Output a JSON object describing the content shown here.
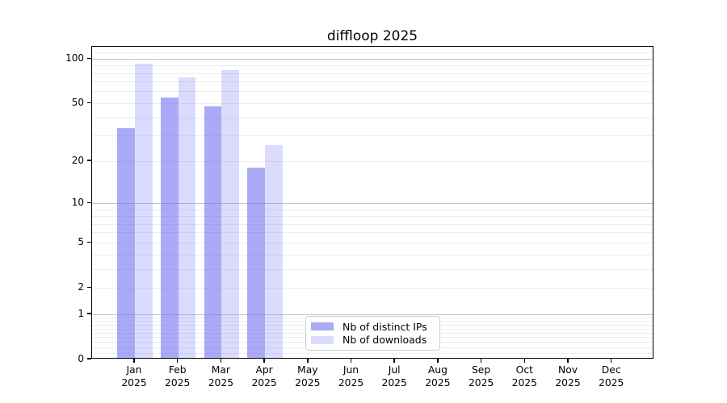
{
  "chart_data": {
    "type": "bar",
    "title": "diffloop 2025",
    "year_label": "2025",
    "months": [
      "Jan",
      "Feb",
      "Mar",
      "Apr",
      "May",
      "Jun",
      "Jul",
      "Aug",
      "Sep",
      "Oct",
      "Nov",
      "Dec"
    ],
    "series": [
      {
        "name": "Nb of distinct IPs",
        "color": "rgba(105,105,245,0.57)",
        "values": [
          34,
          55,
          48,
          18,
          0,
          0,
          0,
          0,
          0,
          0,
          0,
          0
        ]
      },
      {
        "name": "Nb of downloads",
        "color": "rgba(105,105,245,0.24)",
        "values": [
          93,
          75,
          84,
          26,
          0,
          0,
          0,
          0,
          0,
          0,
          0,
          0
        ]
      }
    ],
    "y_axis": {
      "scale": "log10(1+x)",
      "ticks": [
        0,
        1,
        2,
        5,
        10,
        20,
        50,
        100
      ],
      "max": 121
    },
    "grid": {
      "major": [
        1,
        10,
        100
      ],
      "minor": [
        0.1,
        0.2,
        0.3,
        0.4,
        0.5,
        0.6,
        0.7,
        0.8,
        0.9,
        2,
        3,
        4,
        5,
        6,
        7,
        8,
        9,
        20,
        30,
        40,
        50,
        60,
        70,
        80,
        90,
        110
      ],
      "major_color": "#c3c3c3",
      "minor_color": "#ededed"
    },
    "legend_position": "inside-bottom-center",
    "xlabel": "",
    "ylabel": ""
  },
  "colors": {
    "axis": "#000000",
    "text": "#000000",
    "legend_border": "#cccccc",
    "background": "#ffffff"
  }
}
